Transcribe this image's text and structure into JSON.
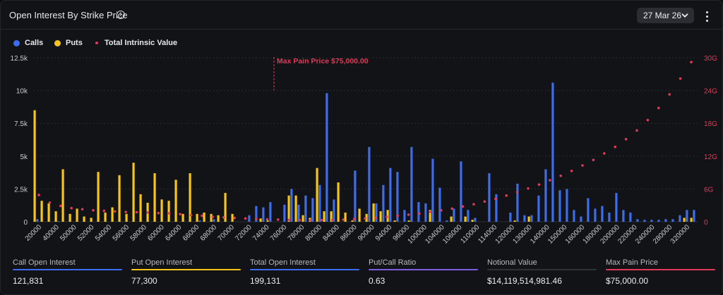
{
  "header": {
    "title": "Open Interest By Strike Price",
    "info_icon": "info-icon",
    "date_selector": "27 Mar 26",
    "date_icon": "chevron-down-icon",
    "menu_icon": "kebab-menu-icon"
  },
  "legend": {
    "items": [
      {
        "label": "Calls",
        "color": "#3b6cf2",
        "marker": "dot"
      },
      {
        "label": "Puts",
        "color": "#f5c518",
        "marker": "dot"
      },
      {
        "label": "Total Intrinsic Value",
        "color": "#e03a5a",
        "marker": "small-dot"
      }
    ]
  },
  "colors": {
    "calls": "#3b6cf2",
    "puts": "#f5c518",
    "intrinsic": "#e03a5a",
    "background": "#121316",
    "grid": "#2a2c33"
  },
  "chart_data": {
    "type": "bar",
    "title": "Open Interest By Strike Price",
    "grid": true,
    "legend_position": "top-left",
    "y_left": {
      "min": 0,
      "max": 12500,
      "ticks": [
        0,
        2500,
        5000,
        7500,
        10000,
        12500
      ],
      "tick_labels": [
        "0",
        "2.5k",
        "5k",
        "7.5k",
        "10k",
        "12.5k"
      ]
    },
    "y_right": {
      "min": 0,
      "max": 30,
      "unit": "G",
      "ticks": [
        0,
        6,
        12,
        18,
        24,
        30
      ],
      "tick_labels": [
        "0",
        "6G",
        "12G",
        "18G",
        "24G",
        "30G"
      ]
    },
    "x_tick_labels": [
      "20000",
      "40000",
      "50000",
      "52000",
      "54000",
      "56000",
      "58000",
      "60000",
      "64000",
      "66000",
      "68000",
      "70000",
      "72000",
      "74000",
      "76000",
      "78000",
      "80000",
      "84000",
      "86000",
      "90000",
      "94000",
      "96000",
      "100000",
      "104000",
      "106000",
      "110000",
      "114000",
      "120000",
      "130000",
      "140000",
      "150000",
      "160000",
      "180000",
      "200000",
      "220000",
      "240000",
      "280000",
      "320000"
    ],
    "series": [
      {
        "name": "Calls",
        "axis": "left",
        "values": [
          200,
          0,
          0,
          50,
          0,
          0,
          0,
          0,
          0,
          0,
          0,
          0,
          0,
          0,
          0,
          0,
          0,
          0,
          0,
          0,
          0,
          0,
          0,
          100,
          0,
          200,
          0,
          0,
          0,
          0,
          500,
          1200,
          1100,
          1500,
          0,
          1300,
          2500,
          1300,
          2000,
          1800,
          2800,
          9800,
          1700,
          0,
          0,
          3900,
          0,
          5700,
          1400,
          2800,
          4100,
          3800,
          900,
          5700,
          1500,
          1400,
          4800,
          2600,
          100,
          1000,
          4600,
          900,
          300,
          0,
          3700,
          2100,
          0,
          700,
          2900,
          500,
          500,
          2000,
          4000,
          10600,
          2400,
          2500,
          900,
          400,
          1800,
          1000,
          1200,
          700,
          2200,
          900,
          700,
          200,
          150,
          150,
          150,
          200,
          200,
          500,
          900,
          900
        ]
      },
      {
        "name": "Puts",
        "axis": "left",
        "values": [
          8500,
          1600,
          1400,
          800,
          4000,
          600,
          1000,
          400,
          300,
          3800,
          700,
          1100,
          3550,
          600,
          4500,
          2100,
          1450,
          3700,
          1700,
          1600,
          3200,
          600,
          3700,
          600,
          700,
          600,
          500,
          2200,
          600,
          0,
          0,
          0,
          250,
          100,
          0,
          0,
          2000,
          2000,
          500,
          300,
          4100,
          800,
          800,
          3000,
          700,
          100,
          1000,
          600,
          1400,
          800,
          900,
          100,
          0,
          100,
          0,
          0,
          900,
          0,
          0,
          400,
          0,
          400,
          150,
          0,
          0,
          0,
          0,
          0,
          100,
          0,
          400,
          0,
          0,
          0,
          0,
          0,
          0,
          0,
          0,
          0,
          0,
          0,
          0,
          0,
          0,
          0,
          0,
          0,
          0,
          0,
          0,
          0,
          300,
          300
        ]
      },
      {
        "name": "Total Intrinsic Value",
        "type": "scatter",
        "axis": "right",
        "values": [
          4.9,
          3.5,
          2.9,
          2.5,
          2.3,
          2.1,
          2,
          1.9,
          1.8,
          1.75,
          1.7,
          1.6,
          1.55,
          1.4,
          1.2,
          1.1,
          0.9,
          0.8,
          0.7,
          0.6,
          0.5,
          0.45,
          0.4,
          0.35,
          0.3,
          0.3,
          0.3,
          0.35,
          0.4,
          0.5,
          0.6,
          0.7,
          0.9,
          1.1,
          1.3,
          1.5,
          1.8,
          2.1,
          2.4,
          2.8,
          3.2,
          3.7,
          4.2,
          4.8,
          5.4,
          6.1,
          6.8,
          7.6,
          8.4,
          9.3,
          10.3,
          11.3,
          12.5,
          13.7,
          15.1,
          16.7,
          18.6,
          20.8,
          23.3,
          26.2,
          29.2
        ]
      }
    ],
    "annotations": [
      {
        "label": "Max Pain Price $75,000.00",
        "x": "75000",
        "color": "#e03a5a"
      }
    ]
  },
  "stats": [
    {
      "label": "Call Open Interest",
      "value": "121,831",
      "color": "#3b6cf2"
    },
    {
      "label": "Put Open Interest",
      "value": "77,300",
      "color": "#f5c518"
    },
    {
      "label": "Total Open Interest",
      "value": "199,131",
      "color": "#3b6cf2"
    },
    {
      "label": "Put/Call Ratio",
      "value": "0.63",
      "color": "#7a5fe0"
    },
    {
      "label": "Notional Value",
      "value": "$14,119,514,981.46",
      "color": "#2f3138"
    },
    {
      "label": "Max Pain Price",
      "value": "$75,000.00",
      "color": "#e03a5a"
    }
  ]
}
